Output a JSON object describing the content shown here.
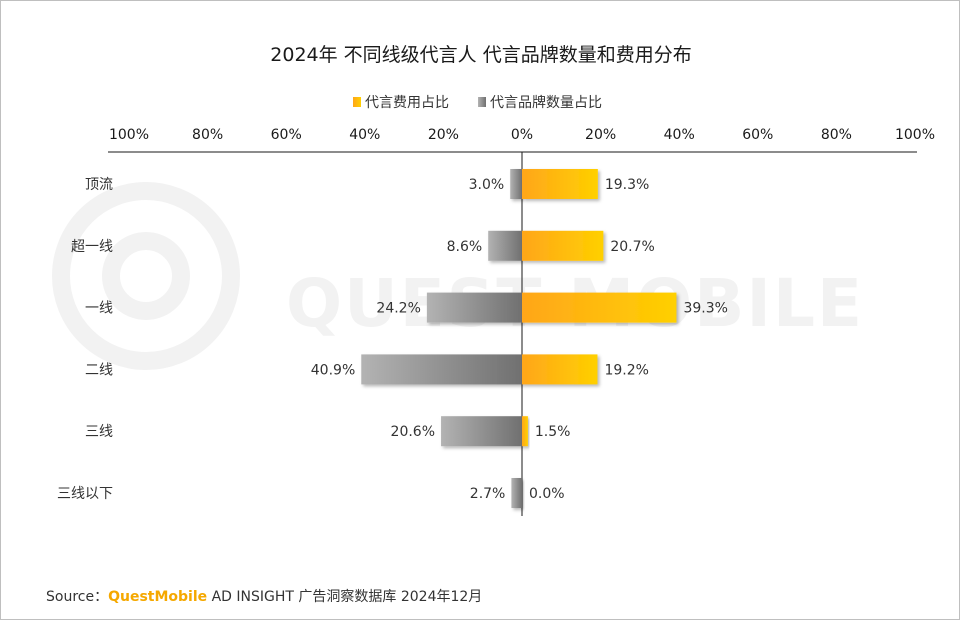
{
  "chart_data": {
    "type": "bar",
    "orientation": "horizontal-diverging",
    "title": "2024年 不同线级代言人 代言品牌数量和费用分布",
    "categories": [
      "顶流",
      "超一线",
      "一线",
      "二线",
      "三线",
      "三线以下"
    ],
    "series": [
      {
        "name": "代言费用占比",
        "side": "right",
        "color": "#ffbf12",
        "values": [
          19.3,
          20.7,
          39.3,
          19.2,
          1.5,
          0.0
        ],
        "labels": [
          "19.3%",
          "20.7%",
          "39.3%",
          "19.2%",
          "1.5%",
          "0.0%"
        ]
      },
      {
        "name": "代言品牌数量占比",
        "side": "left",
        "color": "#8c8c8c",
        "values": [
          3.0,
          8.6,
          24.2,
          40.9,
          20.6,
          2.7
        ],
        "labels": [
          "3.0%",
          "8.6%",
          "24.2%",
          "40.9%",
          "20.6%",
          "2.7%"
        ]
      }
    ],
    "xlim": [
      -100,
      100
    ],
    "tick_values": [
      -100,
      -80,
      -60,
      -40,
      -20,
      0,
      20,
      40,
      60,
      80,
      100
    ],
    "tick_labels": [
      "100%",
      "80%",
      "60%",
      "40%",
      "20%",
      "0%",
      "20%",
      "40%",
      "60%",
      "80%",
      "100%"
    ],
    "axis_position": "top",
    "legend_position": "top-center",
    "grid": false
  },
  "watermark": {
    "text": "QUEST MOBILE"
  },
  "source": {
    "prefix": "Source：",
    "brand": "QuestMobile",
    "suffix": " AD INSIGHT 广告洞察数据库 2024年12月"
  }
}
